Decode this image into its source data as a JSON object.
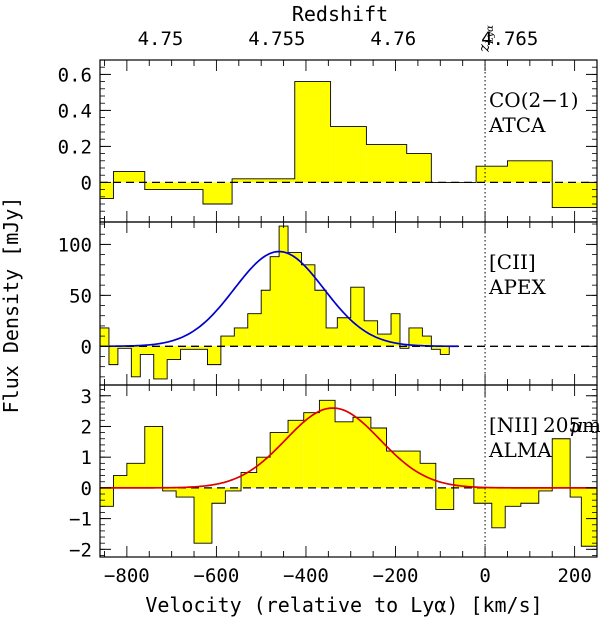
{
  "chart_data": {
    "type": "step",
    "x_axis": {
      "label": "Velocity (relative to Lyα) [km/s]",
      "range": [
        -860,
        250
      ],
      "ticks": [
        -800,
        -600,
        -400,
        -200,
        0,
        200
      ],
      "tick_labels": [
        "−800",
        "−600",
        "−400",
        "−200",
        "0",
        "200"
      ]
    },
    "top_axis": {
      "label": "Redshift",
      "ticks": [
        {
          "label": "4.75",
          "velocity": -725
        },
        {
          "label": "4.755",
          "velocity": -465
        },
        {
          "label": "4.76",
          "velocity": -205
        },
        {
          "label": "4.765",
          "velocity": 55
        }
      ]
    },
    "y_label": "Flux Density [mJy]",
    "zlya_marker": {
      "velocity": 0,
      "label": "z",
      "sub": "Lyα"
    },
    "panels": [
      {
        "name": "CO(2-1)",
        "line1": "CO(2−1)",
        "line2": "ATCA",
        "ylim": [
          -0.22,
          0.68
        ],
        "yticks": [
          0,
          0.2,
          0.4,
          0.6
        ],
        "ytick_labels": [
          "0",
          "0.2",
          "0.4",
          "0.6"
        ],
        "fill_color": "#ffff00",
        "edges": [
          -860,
          -830,
          -760,
          -690,
          -630,
          -565,
          -425,
          -345,
          -265,
          -175,
          -120,
          -80,
          -20,
          50,
          150,
          250
        ],
        "values": [
          -0.09,
          0.06,
          -0.04,
          -0.04,
          -0.12,
          0.02,
          0.56,
          0.31,
          0.21,
          0.16,
          0.0,
          0.0,
          0.09,
          0.12,
          -0.14
        ]
      },
      {
        "name": "[CII]",
        "line1": "[CII]",
        "line2": "APEX",
        "ylim": [
          -38,
          122
        ],
        "yticks": [
          0,
          50,
          100
        ],
        "ytick_labels": [
          "0",
          "50",
          "100"
        ],
        "fill_color": "#ffff00",
        "fit_color": "#0000cc",
        "fit": {
          "amplitude": 93,
          "center": -460,
          "sigma": 100,
          "range": [
            -840,
            -60
          ]
        },
        "edges": [
          -860,
          -840,
          -820,
          -790,
          -770,
          -740,
          -710,
          -680,
          -650,
          -620,
          -590,
          -560,
          -530,
          -500,
          -480,
          -460,
          -440,
          -410,
          -380,
          -355,
          -330,
          -300,
          -270,
          -240,
          -210,
          -190,
          -170,
          -140,
          -120,
          -100,
          -80,
          -60
        ],
        "values": [
          18,
          -18,
          -2,
          -30,
          -8,
          -32,
          -13,
          -3,
          -3,
          -18,
          10,
          18,
          32,
          55,
          88,
          118,
          92,
          80,
          55,
          18,
          28,
          58,
          25,
          12,
          32,
          -2,
          18,
          10,
          -3,
          -8,
          0
        ]
      },
      {
        "name": "[NII] 205um",
        "line1": "[NII]",
        "line1b": "205",
        "line1c": "m",
        "line2": "ALMA",
        "ylim": [
          -2.25,
          3.35
        ],
        "yticks": [
          -2,
          -1,
          0,
          1,
          2,
          3
        ],
        "ytick_labels": [
          "−2",
          "−1",
          "0",
          "1",
          "2",
          "3"
        ],
        "fill_color": "#ffff00",
        "fit_color": "#dd0000",
        "fit": {
          "amplitude": 2.6,
          "center": -340,
          "sigma": 105,
          "range": [
            -860,
            250
          ]
        },
        "edges": [
          -860,
          -830,
          -800,
          -760,
          -720,
          -690,
          -650,
          -610,
          -580,
          -545,
          -510,
          -480,
          -440,
          -405,
          -370,
          -335,
          -295,
          -255,
          -220,
          -185,
          -145,
          -110,
          -70,
          -25,
          15,
          45,
          80,
          120,
          150,
          190,
          215,
          250
        ],
        "values": [
          -0.6,
          0.4,
          0.8,
          2.0,
          -0.1,
          -0.3,
          -1.8,
          -0.5,
          -0.1,
          0.5,
          1.0,
          1.8,
          2.2,
          2.45,
          2.85,
          2.15,
          2.3,
          1.95,
          1.2,
          1.2,
          0.8,
          -0.7,
          0.3,
          -0.5,
          -1.3,
          -0.6,
          -0.5,
          -0.1,
          1.6,
          -0.3,
          -1.9
        ]
      }
    ]
  }
}
